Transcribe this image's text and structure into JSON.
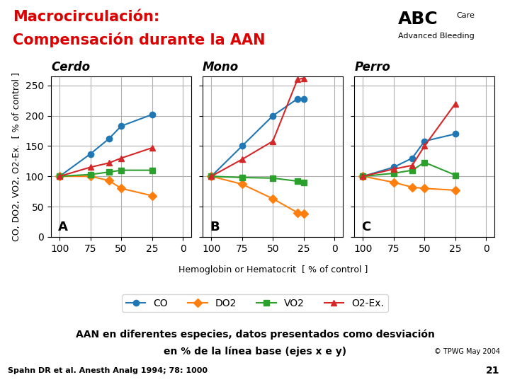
{
  "title": "Macrocirculación:",
  "subtitle": "Compensación durante la AAN",
  "xlabel": "Hemoglobin or Hematocrit  [ % of control ]",
  "legend": "lower center",
  "logo": [
    "ABC",
    "Care",
    "Advanced Bleeding"
  ],
  "footer": [
    "AAN en diferentes especies, datos presentados como desviación",
    "en % de la línea base (ejes x e y)"
  ],
  "copyright": "© TPWG May 2004",
  "citation": "Spahn DR et al. Anesth Analg 1994; 78: 1000",
  "page_number": "21",
  "chart_data": [
    {
      "type": "line",
      "title": "Cerdo",
      "annotations": [
        "A"
      ],
      "ylabel": "CO, DO2, VO2, O2-Ex.  [ % of control ]",
      "x": [
        100,
        75,
        60,
        50,
        25
      ],
      "series": [
        {
          "name": "CO",
          "marker": "circle",
          "values": [
            100,
            137,
            162,
            183,
            202
          ]
        },
        {
          "name": "DO2",
          "marker": "diamond",
          "values": [
            100,
            100,
            93,
            80,
            68
          ]
        },
        {
          "name": "VO2",
          "marker": "square",
          "values": [
            100,
            103,
            107,
            110,
            110
          ]
        },
        {
          "name": "O2-Ex.",
          "marker": "triangle",
          "values": [
            100,
            115,
            122,
            130,
            147
          ]
        }
      ],
      "xlim": [
        107,
        -7
      ],
      "ylim": [
        0,
        265
      ],
      "xticks": [
        100,
        75,
        50,
        25,
        0
      ],
      "yticks": [
        0,
        50,
        100,
        150,
        200,
        250
      ],
      "grid": true
    },
    {
      "type": "line",
      "title": "Mono",
      "annotations": [
        "B"
      ],
      "x": [
        100,
        75,
        50,
        30,
        25
      ],
      "series": [
        {
          "name": "CO",
          "marker": "circle",
          "values": [
            100,
            150,
            200,
            228,
            228
          ]
        },
        {
          "name": "DO2",
          "marker": "diamond",
          "values": [
            100,
            87,
            63,
            40,
            38
          ]
        },
        {
          "name": "VO2",
          "marker": "square",
          "values": [
            100,
            98,
            97,
            92,
            90
          ]
        },
        {
          "name": "O2-Ex.",
          "marker": "triangle",
          "values": [
            100,
            128,
            158,
            260,
            262
          ]
        }
      ],
      "xlim": [
        107,
        -7
      ],
      "ylim": [
        0,
        265
      ],
      "xticks": [
        100,
        75,
        50,
        25,
        0
      ],
      "yticks": [
        0,
        50,
        100,
        150,
        200,
        250
      ],
      "grid": true,
      "tick_labels": "x"
    },
    {
      "type": "line",
      "title": "Perro",
      "annotations": [
        "C"
      ],
      "x": [
        100,
        75,
        60,
        50,
        25
      ],
      "series": [
        {
          "name": "CO",
          "marker": "circle",
          "values": [
            100,
            115,
            130,
            158,
            170
          ]
        },
        {
          "name": "DO2",
          "marker": "diamond",
          "values": [
            100,
            90,
            82,
            80,
            77
          ]
        },
        {
          "name": "VO2",
          "marker": "square",
          "values": [
            100,
            105,
            110,
            123,
            102
          ]
        },
        {
          "name": "O2-Ex.",
          "marker": "triangle",
          "values": [
            100,
            112,
            118,
            150,
            220
          ]
        }
      ],
      "xlim": [
        107,
        -7
      ],
      "ylim": [
        0,
        265
      ],
      "xticks": [
        100,
        75,
        50,
        25,
        0
      ],
      "yticks": [
        0,
        50,
        100,
        150,
        200,
        250
      ],
      "grid": true,
      "tick_labels": "x"
    }
  ]
}
